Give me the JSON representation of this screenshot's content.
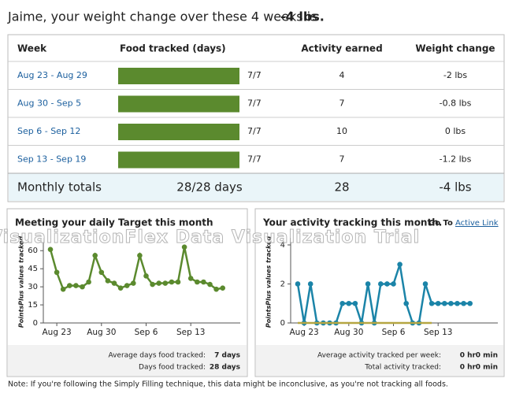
{
  "header": {
    "text": "Jaime, your weight change over these 4 weeks is",
    "value": "-4 lbs."
  },
  "table": {
    "columns": [
      "Week",
      "Food tracked (days)",
      "Activity earned",
      "Weight change"
    ],
    "rows": [
      {
        "week": "Aug 23 - Aug 29",
        "food_days": 7,
        "food_label": "7/7",
        "activity": 4,
        "weight": "-2 lbs"
      },
      {
        "week": "Aug 30 - Sep 5",
        "food_days": 7,
        "food_label": "7/7",
        "activity": 7,
        "weight": "-0.8 lbs"
      },
      {
        "week": "Sep 6 - Sep 12",
        "food_days": 7,
        "food_label": "7/7",
        "activity": 10,
        "weight": "0 lbs"
      },
      {
        "week": "Sep 13 - Sep 19",
        "food_days": 7,
        "food_label": "7/7",
        "activity": 7,
        "weight": "-1.2 lbs"
      }
    ],
    "totals": {
      "label": "Monthly totals",
      "food": "28/28 days",
      "activity": 28,
      "weight": "-4 lbs"
    }
  },
  "chart_data": [
    {
      "type": "line",
      "title": "Meeting your daily Target this month",
      "y_label": "PointsPlus values tracked",
      "categories": [
        null,
        "Aug 23",
        null,
        null,
        null,
        null,
        null,
        null,
        "Aug 30",
        null,
        null,
        null,
        null,
        null,
        null,
        "Sep 6",
        null,
        null,
        null,
        null,
        null,
        null,
        "Sep 13",
        null,
        null,
        null,
        null,
        null
      ],
      "series": [
        {
          "color": "#5b8a2e",
          "values": [
            61,
            42,
            28,
            31,
            31,
            30,
            34,
            56,
            42,
            35,
            33,
            29,
            31,
            33,
            56,
            39,
            32,
            33,
            33,
            34,
            34,
            63,
            37,
            34,
            34,
            32,
            28,
            29
          ]
        }
      ],
      "ylim": [
        0,
        68
      ],
      "yticks": [
        0,
        15,
        30,
        45,
        60
      ],
      "stats": [
        {
          "label": "Average days food tracked:",
          "values": [
            "7 days"
          ]
        },
        {
          "label": "Days food tracked:",
          "values": [
            "28 days"
          ]
        }
      ]
    },
    {
      "type": "line",
      "title": "Your activity tracking this month.",
      "link_prefix": "Go To",
      "link": "Active Link",
      "y_label": "PointsPlus values tracked",
      "categories": [
        null,
        "Aug 23",
        null,
        null,
        null,
        null,
        null,
        null,
        "Aug 30",
        null,
        null,
        null,
        null,
        null,
        null,
        "Sep 6",
        null,
        null,
        null,
        null,
        null,
        null,
        "Sep 13",
        null,
        null,
        null,
        null,
        null
      ],
      "series": [
        {
          "color": "#1b84a8",
          "values": [
            2,
            0,
            2,
            0,
            0,
            0,
            0,
            1,
            1,
            1,
            0,
            2,
            0,
            2,
            2,
            2,
            3,
            1,
            0,
            0,
            2,
            1,
            1,
            1,
            1,
            1,
            1,
            1
          ]
        },
        {
          "color": "#b5a642",
          "values": [
            0,
            0,
            0,
            0,
            0,
            0,
            0,
            0,
            0,
            0,
            0,
            0,
            0,
            0,
            0,
            0,
            0,
            0,
            0,
            0,
            0,
            0,
            null,
            null,
            null,
            null,
            null,
            null
          ]
        }
      ],
      "ylim": [
        0,
        4.2
      ],
      "yticks": [
        0,
        2,
        4
      ],
      "stats": [
        {
          "label": "Average activity tracked per week:",
          "values": [
            "0 hr",
            "0 min"
          ]
        },
        {
          "label": "Total activity tracked:",
          "values": [
            "0 hr",
            "0 min"
          ]
        }
      ]
    }
  ],
  "watermark": "VisualizationFlex Data Visualization Trial",
  "note": "Note: If you're following the Simply Filling technique, this data might be inconclusive, as you're not tracking all foods."
}
